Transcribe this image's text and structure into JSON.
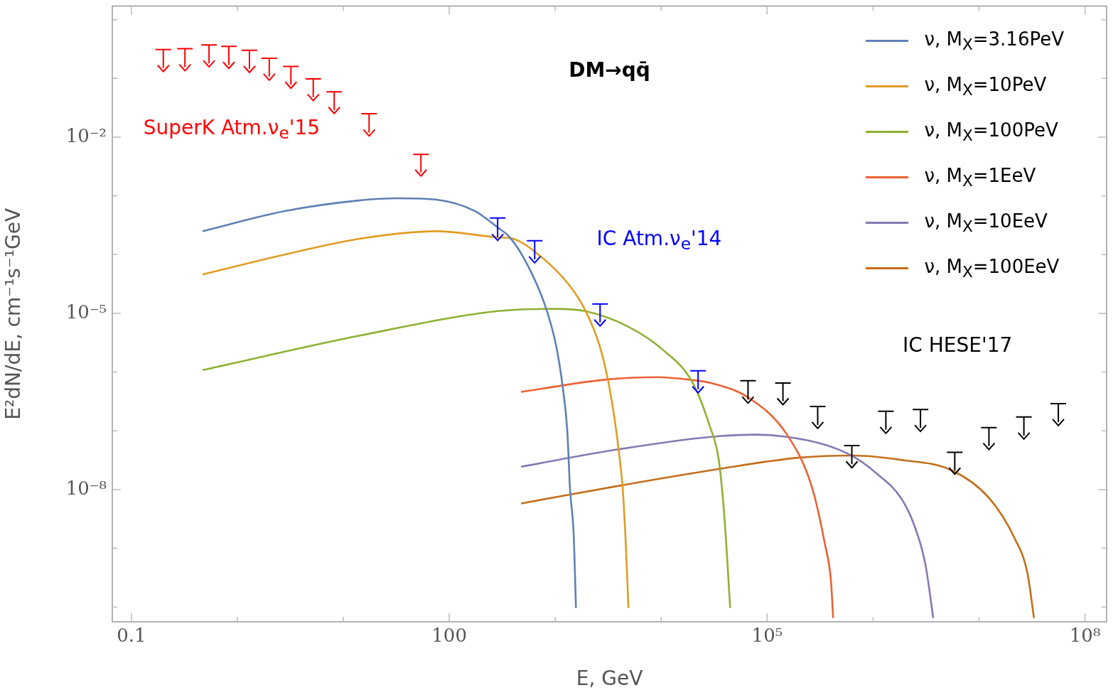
{
  "chart_data": {
    "type": "line",
    "title": "DM→qq̄",
    "xlabel": "E, GeV",
    "ylabel": "E²dN/dE, cm⁻¹s⁻¹GeV",
    "log": "xy",
    "legend": "top right",
    "marker": "none",
    "line_style": "solid",
    "xlim": [
      0.066,
      160000000.0
    ],
    "ylim": [
      5.6e-11,
      1.7
    ],
    "xticks": [
      {
        "value": 0.1,
        "label": "0.1"
      },
      {
        "value": 1,
        "label": null
      },
      {
        "value": 10,
        "label": null
      },
      {
        "value": 100,
        "label": "100"
      },
      {
        "value": 1000,
        "label": null
      },
      {
        "value": 10000,
        "label": null
      },
      {
        "value": 100000,
        "label": "10⁵"
      },
      {
        "value": 1000000,
        "label": null
      },
      {
        "value": 10000000,
        "label": null
      },
      {
        "value": 100000000,
        "label": "10⁸"
      }
    ],
    "yticks": [
      {
        "value": 1e-10,
        "label": null
      },
      {
        "value": 1e-09,
        "label": null
      },
      {
        "value": 1e-08,
        "label": "10⁻⁸"
      },
      {
        "value": 1e-07,
        "label": null
      },
      {
        "value": 1e-06,
        "label": null
      },
      {
        "value": 1e-05,
        "label": "10⁻⁵"
      },
      {
        "value": 0.0001,
        "label": null
      },
      {
        "value": 0.001,
        "label": null
      },
      {
        "value": 0.01,
        "label": "10⁻²"
      },
      {
        "value": 0.1,
        "label": null
      },
      {
        "value": 1,
        "label": null
      }
    ],
    "series": [
      {
        "name": "ν, M$_{X}$=3.16PeV",
        "color": "#5e81b5",
        "x": [
          0.47,
          2.8,
          14.5,
          33,
          76,
          175,
          286,
          372,
          540,
          793,
          1016,
          1190,
          1300,
          1380,
          1490,
          1570
        ],
        "values": [
          0.00025,
          0.00055,
          0.00084,
          0.00091,
          0.00086,
          0.00055,
          0.00029,
          0.000197,
          7e-05,
          1.44e-05,
          2.9e-06,
          4.8e-07,
          9.9e-08,
          1e-08,
          1.84e-09,
          9.6e-11
        ]
      },
      {
        "name": "ν, M$_{X}$=10PeV",
        "color": "#e19c24",
        "x": [
          0.47,
          2.8,
          14.5,
          76,
          286,
          395,
          745,
          1380,
          1910,
          2610,
          3140,
          3610,
          3960,
          4340,
          4620,
          4910
        ],
        "values": [
          4.6e-05,
          0.0001,
          0.000187,
          0.00025,
          0.000197,
          0.000187,
          9e-05,
          2.9e-05,
          1.15e-05,
          2.9e-06,
          7.5e-07,
          1.72e-07,
          4.9e-08,
          1e-08,
          1.32e-09,
          9.6e-11
        ]
      },
      {
        "name": "ν, M$_{X}$=100PeV",
        "color": "#8fb032",
        "x": [
          0.47,
          14.5,
          286,
          955,
          1910,
          4910,
          10500,
          19700,
          28600,
          35000,
          39600,
          44800
        ],
        "values": [
          1.08e-06,
          4.2e-06,
          1.09e-05,
          1.19e-05,
          1.09e-05,
          5.9e-06,
          2.35e-06,
          6.7e-07,
          1.23e-07,
          3.15e-08,
          3.2e-09,
          9.6e-11
        ]
      },
      {
        "name": "ν, M$_{X}$=1EeV",
        "color": "#eb6235",
        "x": [
          476,
          3140,
          9250,
          19700,
          29500,
          67000,
          154000,
          265000,
          350000,
          400000,
          420000
        ],
        "values": [
          4.6e-07,
          7.5e-07,
          8.2e-07,
          7.3e-07,
          6.5e-07,
          3.65e-07,
          8.6e-08,
          1.09e-08,
          1.21e-09,
          2.8e-10,
          6.5e-11
        ]
      },
      {
        "name": "ν, M$_{X}$=10EeV",
        "color": "#8778b3",
        "x": [
          476,
          3840,
          29500,
          79000,
          154000,
          350000,
          640000,
          1050000,
          1830000,
          2400000,
          3100000,
          3700000
        ],
        "values": [
          2.45e-08,
          4.8e-08,
          7.9e-08,
          8.6e-08,
          7.9e-08,
          5.8e-08,
          3.7e-08,
          1.96e-08,
          7.2e-09,
          2.7e-09,
          5.6e-10,
          6.5e-11
        ]
      },
      {
        "name": "ν, M$_{X}$=100EeV",
        "color": "#c56e1a",
        "x": [
          476,
          4340,
          32400,
          204000,
          640000,
          1830000,
          5500000,
          12400000,
          21700000,
          28600000,
          33000000
        ],
        "values": [
          5.8e-09,
          1.19e-08,
          2.19e-08,
          3.5e-08,
          3.8e-08,
          3.2e-08,
          2.13e-08,
          7.2e-09,
          1.47e-09,
          3.8e-10,
          6.5e-11
        ]
      },
      {
        "type": "scatter",
        "marker": "cross",
        "color": "#ff0000",
        "x": [
          0.2,
          0.32,
          0.54,
          0.83,
          1.3,
          2.0,
          3.2,
          5.2,
          8.2,
          17.5,
          54
        ],
        "values": [
          0.15,
          0.155,
          0.18,
          0.17,
          0.145,
          0.107,
          0.078,
          0.048,
          0.029,
          0.012,
          0.0025
        ],
        "errors": [
          [
            0.15,
            0.31
          ],
          [
            0.155,
            0.32
          ],
          [
            0.18,
            0.37
          ],
          [
            0.17,
            0.35
          ],
          [
            0.145,
            0.3
          ],
          [
            0.107,
            0.22
          ],
          [
            0.078,
            0.16
          ],
          [
            0.048,
            0.098
          ],
          [
            0.029,
            0.059
          ],
          [
            0.012,
            0.025
          ],
          [
            0.0025,
            0.0051
          ]
        ]
      },
      {
        "type": "scatter",
        "marker": "cross",
        "color": "#0000ff",
        "x": [
          286,
          640,
          2650,
          22300
        ],
        "values": [
          0.0002,
          8.3e-05,
          7e-06,
          5.1e-07
        ],
        "errors": [
          [
            0.0002,
            0.00042
          ],
          [
            8.3e-05,
            0.000172
          ],
          [
            7e-06,
            1.44e-05
          ],
          [
            5.1e-07,
            1.05e-06
          ]
        ]
      },
      {
        "type": "scatter",
        "marker": "cross",
        "color": "#000000",
        "x": [
          66000,
          141000,
          300000,
          630000,
          1320000,
          2800000,
          5900000,
          12400000,
          26500000,
          56000000
        ],
        "values": [
          3.4e-07,
          3.2e-07,
          1.26e-07,
          2.7e-08,
          1.04e-07,
          1.12e-07,
          2.1e-08,
          5.5e-08,
          8.3e-08,
          1.41e-07
        ],
        "errors": [
          [
            3.4e-07,
            7.1e-07
          ],
          [
            3.2e-07,
            6.5e-07
          ],
          [
            1.26e-07,
            2.6e-07
          ],
          [
            2.7e-08,
            5.6e-08
          ],
          [
            1.04e-07,
            2.15e-07
          ],
          [
            1.12e-07,
            2.3e-07
          ],
          [
            2.1e-08,
            4.3e-08
          ],
          [
            5.5e-08,
            1.13e-07
          ],
          [
            8.3e-08,
            1.72e-07
          ],
          [
            1.41e-07,
            2.9e-07
          ]
        ]
      }
    ],
    "annotations": [
      "SuperK Atm.ν$_{e}$'15",
      "IC Atm.ν$_{e}$'14",
      "IC HESE'17"
    ]
  }
}
